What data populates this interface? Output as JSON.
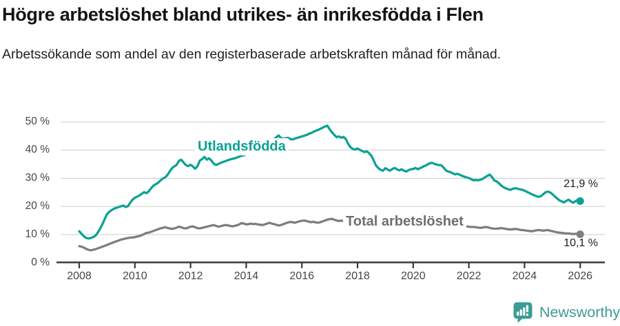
{
  "header": {
    "title": "Högre arbetslöshet bland utrikes- än inrikesfödda i Flen",
    "subtitle": "Arbetssökande som andel av den registerbaserade arbetskraften månad för månad."
  },
  "chart_data": {
    "type": "line",
    "title": "Högre arbetslöshet bland utrikes- än inrikesfödda i Flen",
    "xlabel": "",
    "ylabel": "",
    "x_start": 2008,
    "x_step": 0.0833333,
    "x_unit": "year (monthly points)",
    "x_ticks": [
      2008,
      2010,
      2012,
      2014,
      2016,
      2018,
      2020,
      2022,
      2024,
      2026
    ],
    "y_ticks": [
      0,
      10,
      20,
      30,
      40,
      50
    ],
    "y_tick_suffix": " %",
    "ylim": [
      0,
      50
    ],
    "grid": true,
    "legend_position": "inline-labels",
    "colors": {
      "grid": "#d9d9d9",
      "axis": "#383838",
      "tick_text": "#454545"
    },
    "series": [
      {
        "name": "Utlandsfödda",
        "color": "#0ba294",
        "end_label": "21,9 %",
        "end_value": 21.9,
        "values": [
          11.2,
          10.3,
          9.4,
          8.8,
          8.6,
          8.8,
          9.1,
          9.6,
          10.7,
          12.1,
          13.7,
          15.5,
          17.3,
          18.1,
          18.7,
          19.2,
          19.5,
          19.8,
          20.1,
          20.3,
          19.8,
          20.1,
          21.3,
          22.4,
          23.1,
          23.5,
          23.9,
          24.5,
          25.1,
          24.7,
          25.4,
          26.5,
          27.4,
          27.9,
          28.4,
          29.2,
          29.9,
          30.3,
          31.1,
          32.4,
          33.6,
          34.2,
          34.8,
          36.2,
          36.6,
          35.6,
          34.7,
          34.3,
          34.8,
          34.2,
          33.4,
          34.3,
          36.3,
          36.8,
          37.6,
          36.6,
          37.1,
          36.3,
          35.2,
          34.7,
          35.1,
          35.5,
          35.8,
          36.1,
          36.4,
          36.7,
          36.9,
          37.1,
          37.4,
          37.7,
          38.0,
          38.2,
          38.5,
          38.8,
          39.2,
          39.6,
          40.0,
          40.5,
          41.0,
          41.5,
          42.0,
          42.5,
          43.0,
          43.5,
          43.9,
          44.6,
          45.2,
          44.3,
          44.0,
          44.2,
          44.4,
          44.0,
          43.8,
          44.1,
          44.4,
          44.6,
          44.9,
          45.1,
          45.4,
          45.8,
          46.1,
          46.5,
          46.9,
          47.2,
          47.6,
          48.0,
          48.4,
          48.7,
          47.4,
          46.3,
          45.4,
          44.6,
          44.9,
          44.4,
          44.7,
          43.9,
          42.2,
          41.0,
          40.4,
          40.2,
          40.6,
          40.1,
          39.7,
          39.3,
          39.6,
          38.9,
          38.0,
          36.3,
          34.5,
          33.6,
          33.0,
          32.7,
          33.6,
          33.1,
          32.7,
          33.3,
          33.7,
          33.2,
          32.8,
          33.2,
          32.7,
          32.4,
          32.9,
          33.2,
          33.3,
          33.7,
          33.2,
          33.6,
          34.0,
          34.4,
          34.8,
          35.3,
          35.5,
          35.2,
          34.9,
          34.7,
          34.7,
          33.9,
          32.9,
          32.4,
          32.2,
          31.8,
          31.4,
          31.6,
          31.3,
          30.9,
          30.6,
          30.3,
          30.1,
          29.7,
          29.3,
          29.4,
          29.3,
          29.5,
          29.8,
          30.4,
          30.9,
          31.3,
          30.4,
          29.2,
          28.9,
          28.2,
          27.4,
          26.8,
          26.4,
          26.1,
          25.9,
          26.3,
          26.5,
          26.3,
          26.1,
          25.9,
          25.6,
          25.2,
          24.8,
          24.4,
          24.0,
          23.7,
          23.4,
          23.6,
          24.3,
          25.0,
          25.3,
          25.0,
          24.4,
          23.6,
          22.9,
          22.2,
          21.8,
          21.4,
          22.0,
          22.4,
          21.8,
          21.3,
          21.9,
          22.4,
          21.9
        ]
      },
      {
        "name": "Total arbetslöshet",
        "color": "#7e7e7e",
        "end_label": "10,1 %",
        "end_value": 10.1,
        "values": [
          5.9,
          5.7,
          5.4,
          4.9,
          4.6,
          4.4,
          4.6,
          4.8,
          5.1,
          5.4,
          5.7,
          6.0,
          6.3,
          6.7,
          7.0,
          7.3,
          7.6,
          7.9,
          8.2,
          8.4,
          8.6,
          8.8,
          8.9,
          9.0,
          9.1,
          9.3,
          9.5,
          9.8,
          10.2,
          10.6,
          10.7,
          11.0,
          11.3,
          11.6,
          11.9,
          12.2,
          12.4,
          12.6,
          12.4,
          12.2,
          12.0,
          12.2,
          12.5,
          12.8,
          12.6,
          12.3,
          12.2,
          12.5,
          12.8,
          12.9,
          12.6,
          12.3,
          12.2,
          12.4,
          12.6,
          12.8,
          13.0,
          13.2,
          13.4,
          13.1,
          12.8,
          13.0,
          13.2,
          13.4,
          13.3,
          13.1,
          12.9,
          13.1,
          13.3,
          13.6,
          14.1,
          13.9,
          13.6,
          13.7,
          13.9,
          13.7,
          13.8,
          13.6,
          13.5,
          13.4,
          13.6,
          13.9,
          14.2,
          13.9,
          13.7,
          13.5,
          13.2,
          13.4,
          13.7,
          14.0,
          14.3,
          14.5,
          14.4,
          14.2,
          14.5,
          14.7,
          14.9,
          15.0,
          14.8,
          14.6,
          14.4,
          14.6,
          14.3,
          14.2,
          14.4,
          14.7,
          15.0,
          15.3,
          15.5,
          15.6,
          15.3,
          15.0,
          14.8,
          15.0,
          14.7,
          14.4,
          14.3,
          14.2,
          14.1,
          14.0,
          14.0,
          14.0,
          13.9,
          13.9,
          13.8,
          13.7,
          13.7,
          13.6,
          13.5,
          13.5,
          13.4,
          13.4,
          13.4,
          13.3,
          13.2,
          13.2,
          13.1,
          13.1,
          13.0,
          13.0,
          13.0,
          13.0,
          13.0,
          13.0,
          13.0,
          13.1,
          13.3,
          13.4,
          13.6,
          13.7,
          13.8,
          13.9,
          13.9,
          13.8,
          13.8,
          13.7,
          13.7,
          13.6,
          13.5,
          13.4,
          13.3,
          13.2,
          13.2,
          13.1,
          13.1,
          13.0,
          12.9,
          12.9,
          12.8,
          12.7,
          12.7,
          12.6,
          12.5,
          12.4,
          12.5,
          12.7,
          12.6,
          12.4,
          12.2,
          12.1,
          12.1,
          12.2,
          12.3,
          12.2,
          12.0,
          11.9,
          11.8,
          11.9,
          12.0,
          11.9,
          11.7,
          11.6,
          11.5,
          11.4,
          11.3,
          11.2,
          11.3,
          11.5,
          11.6,
          11.5,
          11.4,
          11.5,
          11.6,
          11.4,
          11.2,
          11.0,
          10.8,
          10.7,
          10.6,
          10.5,
          10.4,
          10.4,
          10.3,
          10.2,
          10.3,
          10.3,
          10.1
        ]
      }
    ]
  },
  "footer": {
    "brand": "Newsworthy",
    "logo_color": "#3d9c95"
  }
}
